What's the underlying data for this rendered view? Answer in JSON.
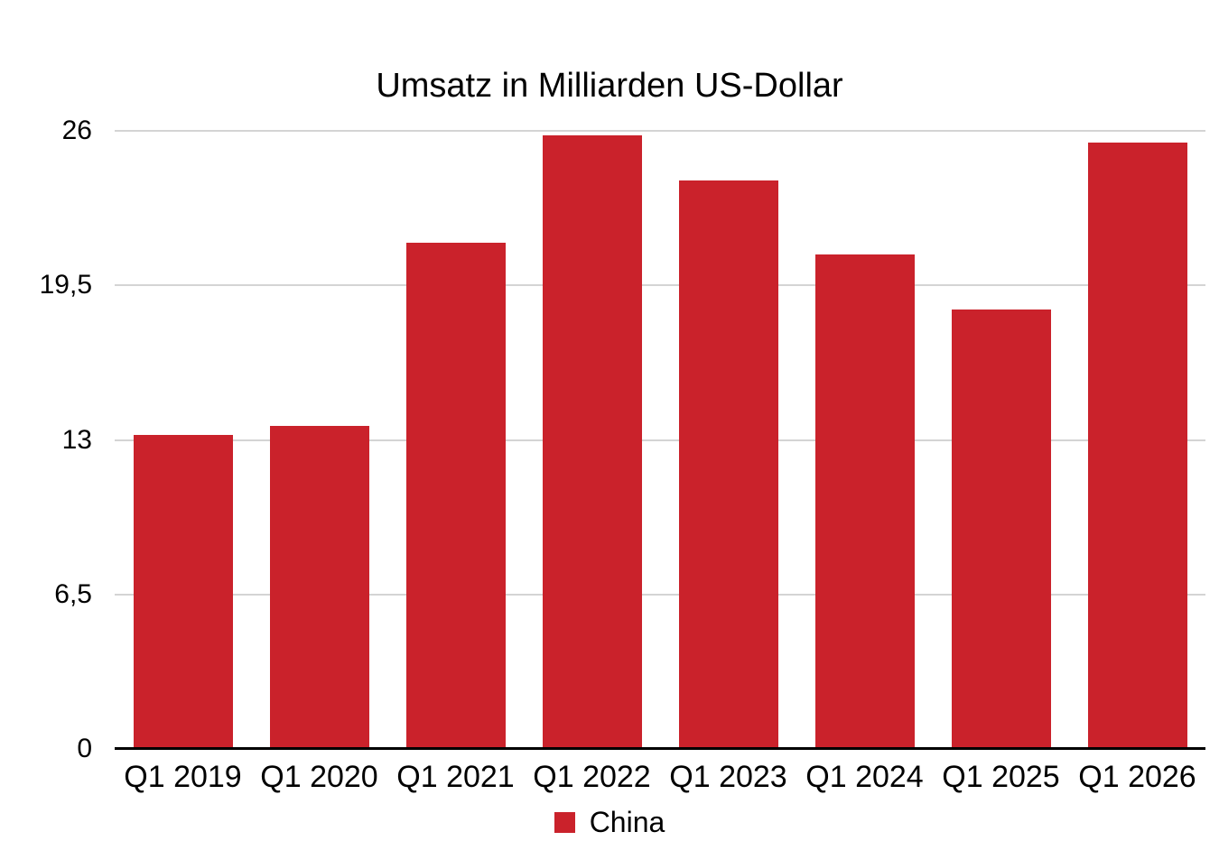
{
  "chart_data": {
    "type": "bar",
    "title": "Umsatz in Milliarden US-Dollar",
    "categories": [
      "Q1 2019",
      "Q1 2020",
      "Q1 2021",
      "Q1 2022",
      "Q1 2023",
      "Q1 2024",
      "Q1 2025",
      "Q1 2026"
    ],
    "series": [
      {
        "name": "China",
        "color": "#ca222b",
        "values": [
          13.2,
          13.6,
          21.3,
          25.8,
          23.9,
          20.8,
          18.5,
          25.5
        ]
      }
    ],
    "xlabel": "",
    "ylabel": "",
    "ylim": [
      0,
      26
    ],
    "yticks": [
      0,
      6.5,
      13,
      19.5,
      26
    ],
    "ytick_labels": [
      "0",
      "6,5",
      "13",
      "19,5",
      "26"
    ],
    "grid": true,
    "grid_color": "#d4d4d4",
    "axis_color": "#000000",
    "background_color": "#ffffff",
    "legend_position": "bottom",
    "legend_items": [
      {
        "label": "China",
        "color": "#ca222b"
      }
    ]
  }
}
